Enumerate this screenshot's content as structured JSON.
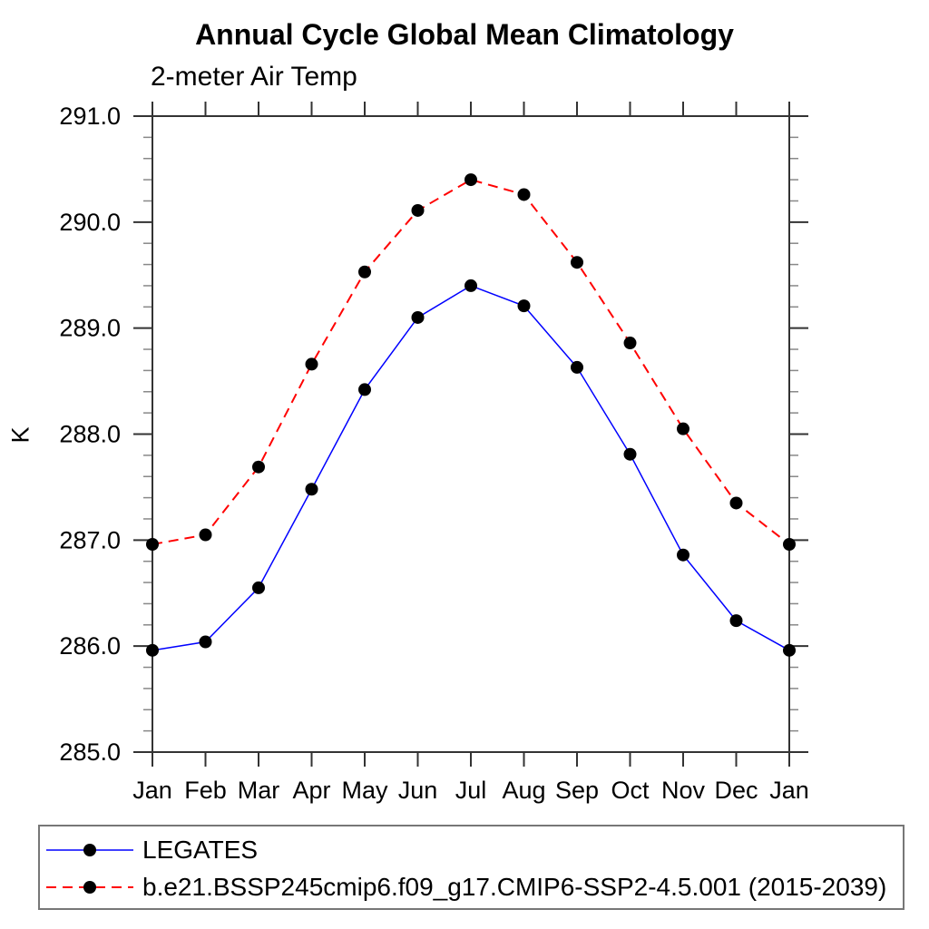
{
  "page": {
    "background_color": "#ffffff"
  },
  "chart_data": {
    "type": "line",
    "title": "Annual Cycle Global Mean Climatology",
    "subtitle": "2-meter Air Temp",
    "xlabel": "",
    "ylabel": "K",
    "ylim": [
      285.0,
      291.0
    ],
    "ytick_step": 1.0,
    "ytick_minor_step": 0.2,
    "ytick_labels": [
      "285.0",
      "286.0",
      "287.0",
      "288.0",
      "289.0",
      "290.0",
      "291.0"
    ],
    "categories": [
      "Jan",
      "Feb",
      "Mar",
      "Apr",
      "May",
      "Jun",
      "Jul",
      "Aug",
      "Sep",
      "Oct",
      "Nov",
      "Dec",
      "Jan"
    ],
    "grid": false,
    "legend_position": "bottom",
    "axis_color": "#333333",
    "minor_tick_color": "#888888",
    "series": [
      {
        "name": "LEGATES",
        "color": "#0000ff",
        "style": "solid",
        "marker": "filled-circle",
        "marker_color": "#000000",
        "values": [
          285.96,
          286.04,
          286.55,
          287.48,
          288.42,
          289.1,
          289.4,
          289.21,
          288.63,
          287.81,
          286.86,
          286.24,
          285.96
        ]
      },
      {
        "name": "b.e21.BSSP245cmip6.f09_g17.CMIP6-SSP2-4.5.001 (2015-2039)",
        "color": "#ff0000",
        "style": "dashed",
        "marker": "filled-circle",
        "marker_color": "#000000",
        "values": [
          286.96,
          287.05,
          287.69,
          288.66,
          289.53,
          290.11,
          290.4,
          290.26,
          289.62,
          288.86,
          288.05,
          287.35,
          286.96
        ]
      }
    ]
  }
}
